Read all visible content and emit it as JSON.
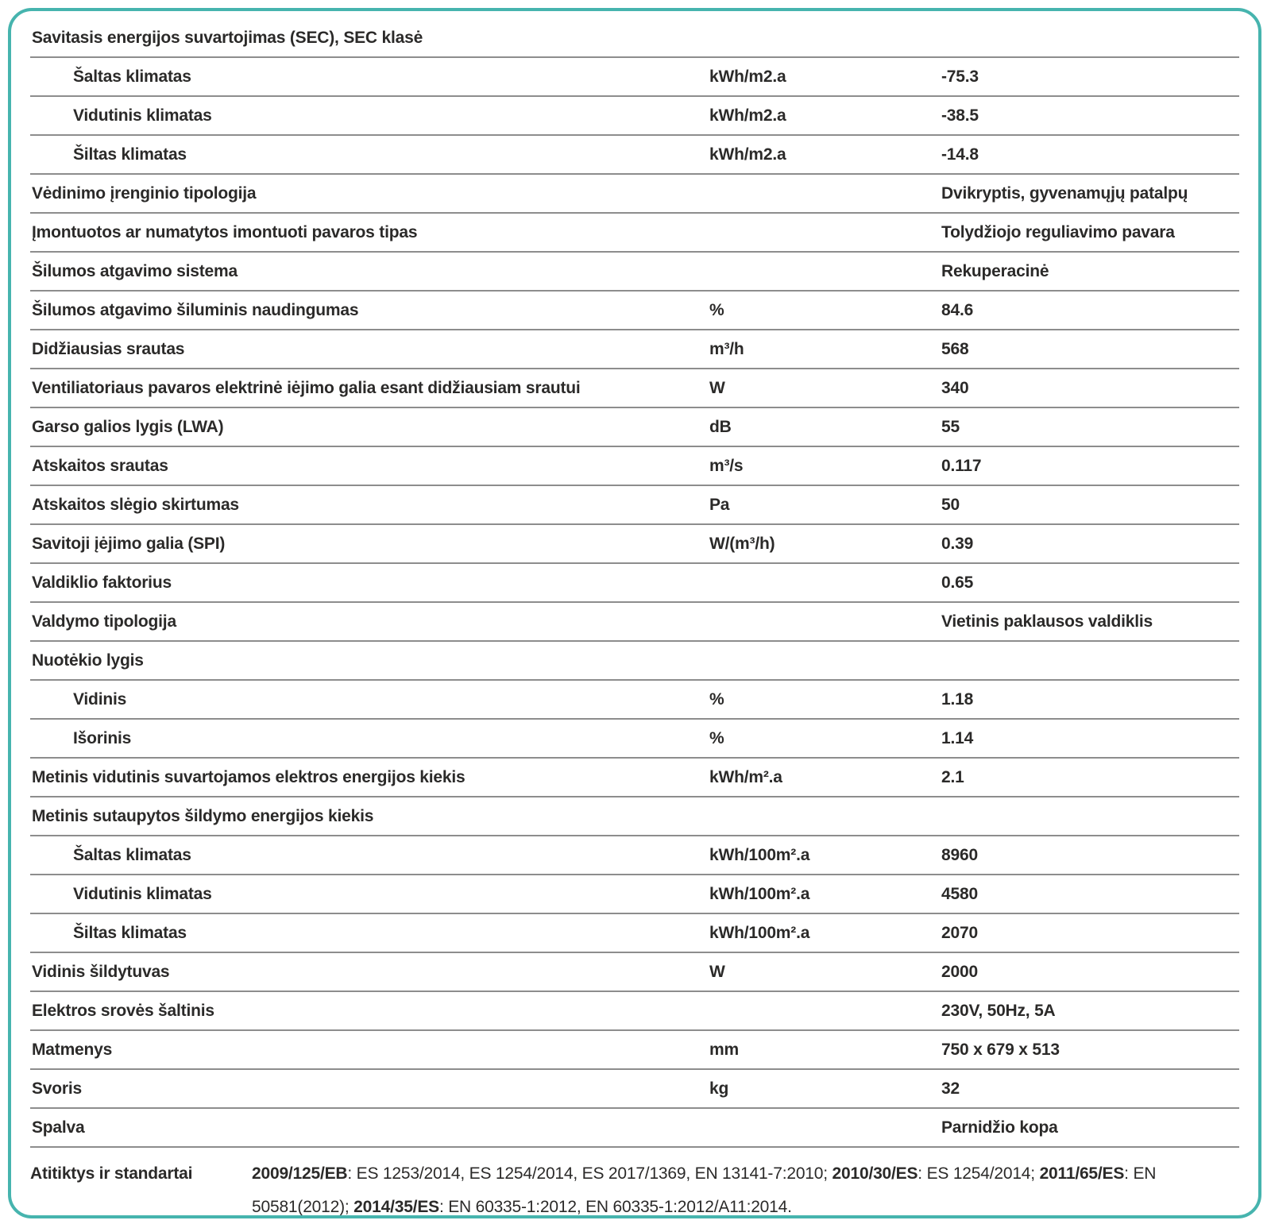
{
  "colors": {
    "accent": "#46b4ae",
    "text": "#2b2a29",
    "divider": "#8d8d8d"
  },
  "table": {
    "rows": [
      {
        "type": "section",
        "indent": false,
        "label": "Savitasis energijos suvartojimas (SEC), SEC klasė",
        "unit": "",
        "value": ""
      },
      {
        "type": "data",
        "indent": true,
        "label": "Šaltas klimatas",
        "unit": "kWh/m2.a",
        "value": "-75.3"
      },
      {
        "type": "data",
        "indent": true,
        "label": "Vidutinis klimatas",
        "unit": "kWh/m2.a",
        "value": "-38.5"
      },
      {
        "type": "data",
        "indent": true,
        "label": "Šiltas klimatas",
        "unit": "kWh/m2.a",
        "value": "-14.8"
      },
      {
        "type": "data",
        "indent": false,
        "label": "Vėdinimo įrenginio tipologija",
        "unit": "",
        "value": "Dvikryptis, gyvenamųjų patalpų"
      },
      {
        "type": "data",
        "indent": false,
        "label": "Įmontuotos ar numatytos imontuoti pavaros tipas",
        "unit": "",
        "value": "Tolydžiojo reguliavimo pavara"
      },
      {
        "type": "data",
        "indent": false,
        "label": "Šilumos atgavimo sistema",
        "unit": "",
        "value": "Rekuperacinė"
      },
      {
        "type": "data",
        "indent": false,
        "label": "Šilumos atgavimo šiluminis naudingumas",
        "unit": "%",
        "value": "84.6"
      },
      {
        "type": "data",
        "indent": false,
        "label": "Didžiausias srautas",
        "unit": "m³/h",
        "value": "568"
      },
      {
        "type": "data",
        "indent": false,
        "label": "Ventiliatoriaus pavaros elektrinė iėjimo galia esant didžiausiam srautui",
        "unit": "W",
        "value": "340"
      },
      {
        "type": "data",
        "indent": false,
        "label": "Garso galios lygis (LWA)",
        "unit": "dB",
        "value": "55"
      },
      {
        "type": "data",
        "indent": false,
        "label": "Atskaitos srautas",
        "unit": "m³/s",
        "value": "0.117"
      },
      {
        "type": "data",
        "indent": false,
        "label": "Atskaitos slėgio skirtumas",
        "unit": "Pa",
        "value": "50"
      },
      {
        "type": "data",
        "indent": false,
        "label": "Savitoji įėjimo galia (SPI)",
        "unit": "W/(m³/h)",
        "value": "0.39"
      },
      {
        "type": "data",
        "indent": false,
        "label": "Valdiklio faktorius",
        "unit": "",
        "value": "0.65"
      },
      {
        "type": "data",
        "indent": false,
        "label": "Valdymo tipologija",
        "unit": "",
        "value": "Vietinis paklausos valdiklis"
      },
      {
        "type": "section",
        "indent": false,
        "label": "Nuotėkio lygis",
        "unit": "",
        "value": ""
      },
      {
        "type": "data",
        "indent": true,
        "label": "Vidinis",
        "unit": "%",
        "value": "1.18"
      },
      {
        "type": "data",
        "indent": true,
        "label": "Išorinis",
        "unit": "%",
        "value": "1.14"
      },
      {
        "type": "data",
        "indent": false,
        "label": "Metinis vidutinis suvartojamos elektros energijos kiekis",
        "unit": "kWh/m².a",
        "value": "2.1"
      },
      {
        "type": "section",
        "indent": false,
        "label": "Metinis sutaupytos šildymo energijos kiekis",
        "unit": "",
        "value": ""
      },
      {
        "type": "data",
        "indent": true,
        "label": "Šaltas klimatas",
        "unit": "kWh/100m².a",
        "value": "8960"
      },
      {
        "type": "data",
        "indent": true,
        "label": "Vidutinis klimatas",
        "unit": "kWh/100m².a",
        "value": "4580"
      },
      {
        "type": "data",
        "indent": true,
        "label": "Šiltas klimatas",
        "unit": "kWh/100m².a",
        "value": "2070"
      },
      {
        "type": "data",
        "indent": false,
        "label": "Vidinis šildytuvas",
        "unit": "W",
        "value": "2000"
      },
      {
        "type": "data",
        "indent": false,
        "label": "Elektros srovės šaltinis",
        "unit": "",
        "value": "230V, 50Hz, 5A"
      },
      {
        "type": "data",
        "indent": false,
        "label": "Matmenys",
        "unit": "mm",
        "value": "750 x 679 x 513"
      },
      {
        "type": "data",
        "indent": false,
        "label": "Svoris",
        "unit": "kg",
        "value": "32"
      },
      {
        "type": "data",
        "indent": false,
        "label": "Spalva",
        "unit": "",
        "value": "Parnidžio kopa"
      }
    ]
  },
  "standards": {
    "label": "Atitiktys ir standartai",
    "segments": [
      {
        "text": "2009/125/EB",
        "bold": true
      },
      {
        "text": ": ES 1253/2014, ES 1254/2014, ES 2017/1369, EN 13141-7:2010; ",
        "bold": false
      },
      {
        "text": "2010/30/ES",
        "bold": true
      },
      {
        "text": ": ES 1254/2014; ",
        "bold": false
      },
      {
        "text": "2011/65/ES",
        "bold": true
      },
      {
        "text": ": EN 50581(2012); ",
        "bold": false
      },
      {
        "text": "2014/35/ES",
        "bold": true
      },
      {
        "text": ": EN 60335-1:2012, EN 60335-1:2012/A11:2014.",
        "bold": false
      }
    ]
  }
}
